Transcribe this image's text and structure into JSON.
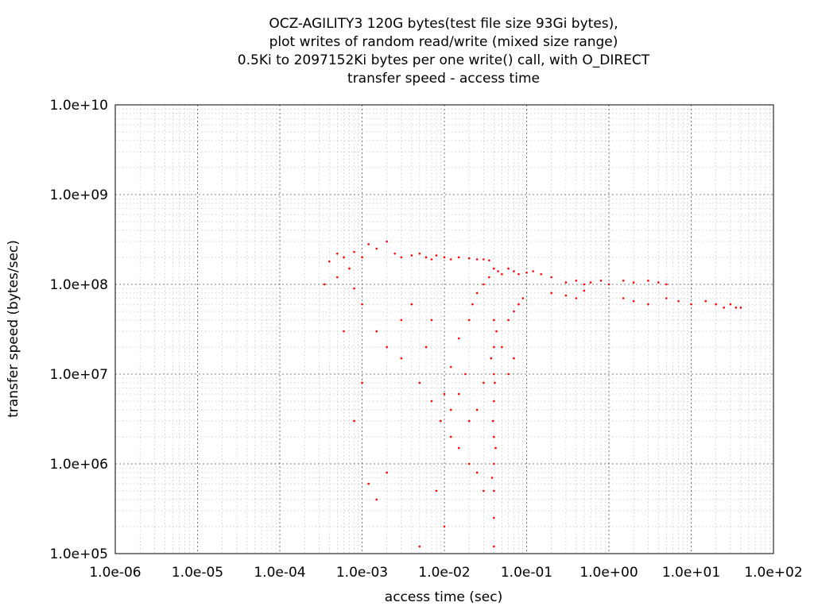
{
  "chart_data": {
    "type": "scatter",
    "title_lines": [
      "OCZ-AGILITY3 120G bytes(test file size 93Gi bytes),",
      "plot writes of random read/write (mixed size range)",
      "0.5Ki to 2097152Ki bytes per one write() call, with O_DIRECT",
      "transfer speed - access time"
    ],
    "xlabel": "access time (sec)",
    "ylabel": "transfer speed (bytes/sec)",
    "x_scale": "log",
    "y_scale": "log",
    "xlim": [
      1e-06,
      100
    ],
    "ylim": [
      100000,
      10000000000
    ],
    "x_ticks": [
      {
        "value": 1e-06,
        "label": "1.0e-06"
      },
      {
        "value": 1e-05,
        "label": "1.0e-05"
      },
      {
        "value": 0.0001,
        "label": "1.0e-04"
      },
      {
        "value": 0.001,
        "label": "1.0e-03"
      },
      {
        "value": 0.01,
        "label": "1.0e-02"
      },
      {
        "value": 0.1,
        "label": "1.0e-01"
      },
      {
        "value": 1,
        "label": "1.0e+00"
      },
      {
        "value": 10,
        "label": "1.0e+01"
      },
      {
        "value": 100,
        "label": "1.0e+02"
      }
    ],
    "y_ticks": [
      {
        "value": 100000,
        "label": "1.0e+05"
      },
      {
        "value": 1000000,
        "label": "1.0e+06"
      },
      {
        "value": 10000000,
        "label": "1.0e+07"
      },
      {
        "value": 100000000,
        "label": "1.0e+08"
      },
      {
        "value": 1000000000,
        "label": "1.0e+09"
      },
      {
        "value": 10000000000,
        "label": "1.0e+10"
      }
    ],
    "grid": true,
    "point_color": "#ff0000",
    "series": [
      {
        "points": [
          [
            0.00035,
            100000000
          ],
          [
            0.0004,
            180000000
          ],
          [
            0.0005,
            220000000
          ],
          [
            0.0006,
            200000000
          ],
          [
            0.0007,
            150000000
          ],
          [
            0.0008,
            230000000
          ],
          [
            0.001,
            200000000
          ],
          [
            0.0012,
            280000000
          ],
          [
            0.0015,
            250000000
          ],
          [
            0.002,
            300000000
          ],
          [
            0.0025,
            220000000
          ],
          [
            0.003,
            200000000
          ],
          [
            0.004,
            210000000
          ],
          [
            0.005,
            220000000
          ],
          [
            0.006,
            200000000
          ],
          [
            0.007,
            190000000
          ],
          [
            0.008,
            210000000
          ],
          [
            0.01,
            200000000
          ],
          [
            0.012,
            190000000
          ],
          [
            0.015,
            200000000
          ],
          [
            0.02,
            195000000
          ],
          [
            0.025,
            190000000
          ],
          [
            0.03,
            190000000
          ],
          [
            0.035,
            185000000
          ],
          [
            0.0005,
            120000000
          ],
          [
            0.0008,
            90000000
          ],
          [
            0.001,
            60000000
          ],
          [
            0.0015,
            30000000
          ],
          [
            0.002,
            20000000
          ],
          [
            0.003,
            15000000
          ],
          [
            0.005,
            8000000
          ],
          [
            0.007,
            5000000
          ],
          [
            0.009,
            3000000
          ],
          [
            0.012,
            2000000
          ],
          [
            0.015,
            1500000
          ],
          [
            0.02,
            1000000
          ],
          [
            0.025,
            800000
          ],
          [
            0.03,
            500000
          ],
          [
            0.0006,
            30000000
          ],
          [
            0.001,
            8000000
          ],
          [
            0.0008,
            3000000
          ],
          [
            0.0012,
            600000
          ],
          [
            0.0015,
            400000
          ],
          [
            0.002,
            800000
          ],
          [
            0.005,
            120000
          ],
          [
            0.008,
            500000
          ],
          [
            0.01,
            200000
          ],
          [
            0.01,
            6000000
          ],
          [
            0.012,
            12000000
          ],
          [
            0.015,
            25000000
          ],
          [
            0.02,
            40000000
          ],
          [
            0.022,
            60000000
          ],
          [
            0.025,
            80000000
          ],
          [
            0.03,
            100000000
          ],
          [
            0.035,
            120000000
          ],
          [
            0.04,
            150000000
          ],
          [
            0.045,
            140000000
          ],
          [
            0.05,
            130000000
          ],
          [
            0.06,
            150000000
          ],
          [
            0.07,
            140000000
          ],
          [
            0.08,
            130000000
          ],
          [
            0.1,
            135000000
          ],
          [
            0.12,
            140000000
          ],
          [
            0.15,
            130000000
          ],
          [
            0.2,
            120000000
          ],
          [
            0.3,
            105000000
          ],
          [
            0.4,
            110000000
          ],
          [
            0.5,
            100000000
          ],
          [
            0.6,
            105000000
          ],
          [
            0.8,
            110000000
          ],
          [
            1.0,
            100000000
          ],
          [
            1.5,
            110000000
          ],
          [
            2.0,
            105000000
          ],
          [
            3.0,
            110000000
          ],
          [
            4.0,
            105000000
          ],
          [
            5.0,
            100000000
          ],
          [
            0.2,
            80000000
          ],
          [
            0.3,
            75000000
          ],
          [
            0.4,
            70000000
          ],
          [
            0.5,
            85000000
          ],
          [
            1.5,
            70000000
          ],
          [
            2.0,
            65000000
          ],
          [
            3.0,
            60000000
          ],
          [
            5.0,
            70000000
          ],
          [
            7.0,
            65000000
          ],
          [
            10.0,
            60000000
          ],
          [
            15.0,
            65000000
          ],
          [
            20.0,
            60000000
          ],
          [
            25.0,
            55000000
          ],
          [
            30.0,
            60000000
          ],
          [
            35.0,
            55000000
          ],
          [
            40.0,
            55000000
          ],
          [
            0.04,
            120000
          ],
          [
            0.04,
            250000
          ],
          [
            0.04,
            500000
          ],
          [
            0.04,
            1000000
          ],
          [
            0.04,
            2000000
          ],
          [
            0.04,
            5000000
          ],
          [
            0.04,
            10000000
          ],
          [
            0.04,
            20000000
          ],
          [
            0.04,
            40000000
          ],
          [
            0.038,
            700000
          ],
          [
            0.042,
            1500000
          ],
          [
            0.039,
            3000000
          ],
          [
            0.041,
            8000000
          ],
          [
            0.037,
            15000000
          ],
          [
            0.043,
            30000000
          ],
          [
            0.05,
            20000000
          ],
          [
            0.06,
            40000000
          ],
          [
            0.07,
            50000000
          ],
          [
            0.08,
            60000000
          ],
          [
            0.09,
            70000000
          ],
          [
            0.06,
            10000000
          ],
          [
            0.07,
            15000000
          ],
          [
            0.03,
            8000000
          ],
          [
            0.025,
            4000000
          ],
          [
            0.02,
            3000000
          ],
          [
            0.015,
            6000000
          ],
          [
            0.012,
            4000000
          ],
          [
            0.018,
            10000000
          ],
          [
            0.006,
            20000000
          ],
          [
            0.007,
            40000000
          ],
          [
            0.004,
            60000000
          ],
          [
            0.003,
            40000000
          ]
        ]
      }
    ]
  }
}
